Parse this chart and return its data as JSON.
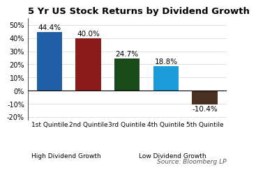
{
  "title": "5 Yr US Stock Returns by Dividend Growth",
  "values": [
    44.4,
    40.0,
    24.7,
    18.8,
    -10.4
  ],
  "bar_colors": [
    "#1f5fa6",
    "#8b1a1a",
    "#1a4a1a",
    "#1b9cd8",
    "#4a3020"
  ],
  "x_labels_line1": [
    "1st Quintile",
    "2nd Quintile",
    "3rd Quintile",
    "4th Quintile",
    "5th Quintile"
  ],
  "ylim": [
    -22,
    55
  ],
  "yticks": [
    -20,
    -10,
    0,
    10,
    20,
    30,
    40,
    50
  ],
  "source_text": "Source: Bloomberg LP",
  "title_fontsize": 9.5,
  "label_fontsize": 7.5,
  "tick_fontsize": 7,
  "source_fontsize": 6.5
}
